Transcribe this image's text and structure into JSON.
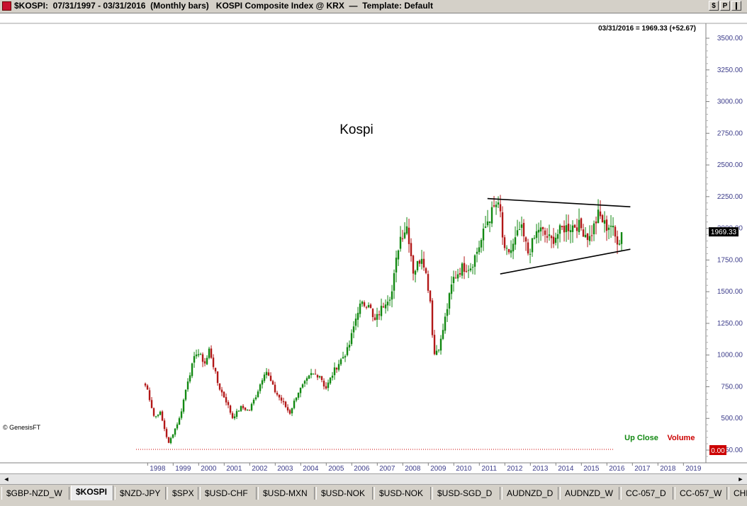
{
  "window": {
    "title": "$KOSPI:  07/31/1997 - 03/31/2016  (Monthly bars)   KOSPI Composite Index @ KRX  —  Template: Default",
    "buttons": [
      "$",
      "P",
      "❙"
    ]
  },
  "chart": {
    "watermark": "Kospi",
    "last_label": "03/31/2016 = 1969.33 (+52.67)",
    "last_value_tag": "1969.33",
    "volume_tag": "0.00",
    "copyright": "© GenesisFT",
    "legend": {
      "up": "Up Close",
      "volume": "Volume"
    },
    "colors": {
      "up": "#118811",
      "down": "#b21717",
      "line": "#000000",
      "grid_text": "#3c3c8a",
      "volume": "#cc0000"
    }
  },
  "chart_data": {
    "type": "candlestick",
    "title": "",
    "y_ticks": [
      250,
      500,
      750,
      1000,
      1250,
      1500,
      1750,
      2000,
      2250,
      2500,
      2750,
      3000,
      3250,
      3500
    ],
    "y_tick_labels": [
      "250.00",
      "500.00",
      "750.00",
      "1000.00",
      "1250.00",
      "1500.00",
      "1750.00",
      "2000.00",
      "2250.00",
      "2500.00",
      "2750.00",
      "3000.00",
      "3250.00",
      "3500.00"
    ],
    "ylim": [
      100,
      3640
    ],
    "x_tick_labels": [
      "1998",
      "1999",
      "2000",
      "2001",
      "2002",
      "2003",
      "2004",
      "2005",
      "2006",
      "2007",
      "2008",
      "2009",
      "2010",
      "2011",
      "2012",
      "2013",
      "2014",
      "2015",
      "2016",
      "2017",
      "2018",
      "2019"
    ],
    "xlim": [
      1997.0,
      2019.6
    ],
    "start": "1997-07",
    "end": "2016-03",
    "anchors": [
      [
        1997.58,
        760
      ],
      [
        1997.9,
        500
      ],
      [
        1998.1,
        560
      ],
      [
        1998.45,
        300
      ],
      [
        1998.9,
        510
      ],
      [
        1999.2,
        800
      ],
      [
        1999.55,
        1030
      ],
      [
        1999.9,
        930
      ],
      [
        2000.05,
        1050
      ],
      [
        2000.4,
        760
      ],
      [
        2000.75,
        620
      ],
      [
        2000.95,
        505
      ],
      [
        2001.3,
        590
      ],
      [
        2001.6,
        560
      ],
      [
        2001.9,
        690
      ],
      [
        2002.25,
        890
      ],
      [
        2002.6,
        720
      ],
      [
        2002.95,
        620
      ],
      [
        2003.2,
        540
      ],
      [
        2003.5,
        700
      ],
      [
        2003.8,
        780
      ],
      [
        2004.05,
        850
      ],
      [
        2004.4,
        840
      ],
      [
        2004.6,
        730
      ],
      [
        2004.95,
        880
      ],
      [
        2005.2,
        960
      ],
      [
        2005.5,
        1050
      ],
      [
        2005.9,
        1380
      ],
      [
        2006.3,
        1420
      ],
      [
        2006.5,
        1250
      ],
      [
        2006.95,
        1430
      ],
      [
        2007.2,
        1490
      ],
      [
        2007.5,
        1920
      ],
      [
        2007.8,
        2020
      ],
      [
        2007.9,
        1880
      ],
      [
        2008.05,
        1650
      ],
      [
        2008.4,
        1800
      ],
      [
        2008.7,
        1450
      ],
      [
        2008.85,
        1000
      ],
      [
        2009.1,
        1090
      ],
      [
        2009.35,
        1350
      ],
      [
        2009.6,
        1600
      ],
      [
        2009.95,
        1690
      ],
      [
        2010.3,
        1700
      ],
      [
        2010.7,
        1900
      ],
      [
        2010.95,
        2060
      ],
      [
        2011.3,
        2190
      ],
      [
        2011.45,
        2130
      ],
      [
        2011.6,
        1800
      ],
      [
        2011.9,
        1830
      ],
      [
        2012.25,
        2010
      ],
      [
        2012.55,
        1800
      ],
      [
        2012.95,
        2000
      ],
      [
        2013.45,
        1900
      ],
      [
        2013.9,
        2000
      ],
      [
        2014.5,
        2030
      ],
      [
        2014.95,
        1920
      ],
      [
        2015.3,
        2110
      ],
      [
        2015.6,
        2010
      ],
      [
        2015.8,
        2030
      ],
      [
        2015.95,
        1930
      ],
      [
        2016.1,
        1900
      ],
      [
        2016.25,
        1969.33
      ]
    ],
    "trendlines": [
      {
        "from": [
          2010.95,
          2235
        ],
        "to": [
          2016.55,
          2170
        ]
      },
      {
        "from": [
          2011.45,
          1640
        ],
        "to": [
          2016.55,
          1835
        ]
      }
    ],
    "last_close": 1969.33,
    "change": 52.67
  },
  "scrollbar": {
    "left": "◄",
    "right": "►"
  },
  "tabs": [
    "$GBP-NZD_W",
    "$KOSPI",
    "$NZD-JPY",
    "$SPX",
    "$USD-CHF",
    "$USD-MXN",
    "$USD-NOK",
    "$USD-NOK",
    "$USD-SGD_D",
    "AUDNZD_D",
    "AUDNZD_W",
    "CC-057_D",
    "CC-057_W",
    "CHK"
  ],
  "active_tab": "$KOSPI"
}
